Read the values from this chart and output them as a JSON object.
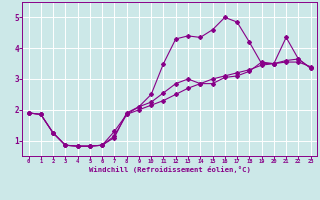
{
  "xlabel": "Windchill (Refroidissement éolien,°C)",
  "background_color": "#cce8e8",
  "grid_color": "#ffffff",
  "line_color": "#880088",
  "xlim": [
    -0.5,
    23.5
  ],
  "ylim": [
    0.5,
    5.5
  ],
  "xticks": [
    0,
    1,
    2,
    3,
    4,
    5,
    6,
    7,
    8,
    9,
    10,
    11,
    12,
    13,
    14,
    15,
    16,
    17,
    18,
    19,
    20,
    21,
    22,
    23
  ],
  "yticks": [
    1,
    2,
    3,
    4,
    5
  ],
  "line1_x": [
    0,
    1,
    2,
    3,
    4,
    5,
    6,
    7,
    8,
    9,
    10,
    11,
    12,
    13,
    14,
    15,
    16,
    17,
    18,
    19,
    20,
    21,
    22,
    23
  ],
  "line1_y": [
    1.9,
    1.85,
    1.25,
    0.85,
    0.82,
    0.82,
    0.85,
    1.1,
    1.9,
    2.1,
    2.5,
    3.5,
    4.3,
    4.4,
    4.35,
    4.6,
    5.0,
    4.85,
    4.2,
    3.5,
    3.5,
    4.35,
    3.65,
    3.35
  ],
  "line2_x": [
    0,
    1,
    2,
    3,
    4,
    5,
    6,
    7,
    8,
    9,
    10,
    11,
    12,
    13,
    14,
    15,
    16,
    17,
    18,
    19,
    20,
    21,
    22,
    23
  ],
  "line2_y": [
    1.9,
    1.85,
    1.25,
    0.85,
    0.82,
    0.82,
    0.85,
    1.3,
    1.85,
    2.1,
    2.25,
    2.55,
    2.85,
    3.0,
    2.85,
    2.85,
    3.05,
    3.1,
    3.25,
    3.55,
    3.5,
    3.55,
    3.55,
    3.4
  ],
  "line3_x": [
    0,
    1,
    2,
    3,
    4,
    5,
    6,
    7,
    8,
    9,
    10,
    11,
    12,
    13,
    14,
    15,
    16,
    17,
    18,
    19,
    20,
    21,
    22,
    23
  ],
  "line3_y": [
    1.9,
    1.85,
    1.25,
    0.85,
    0.82,
    0.82,
    0.85,
    1.15,
    1.85,
    2.0,
    2.15,
    2.3,
    2.5,
    2.7,
    2.85,
    3.0,
    3.1,
    3.2,
    3.3,
    3.45,
    3.5,
    3.6,
    3.65,
    3.35
  ],
  "marker": "D",
  "markersize": 2,
  "linewidth": 0.8,
  "xtick_fontsize": 4.0,
  "ytick_fontsize": 5.5,
  "xlabel_fontsize": 5.2
}
